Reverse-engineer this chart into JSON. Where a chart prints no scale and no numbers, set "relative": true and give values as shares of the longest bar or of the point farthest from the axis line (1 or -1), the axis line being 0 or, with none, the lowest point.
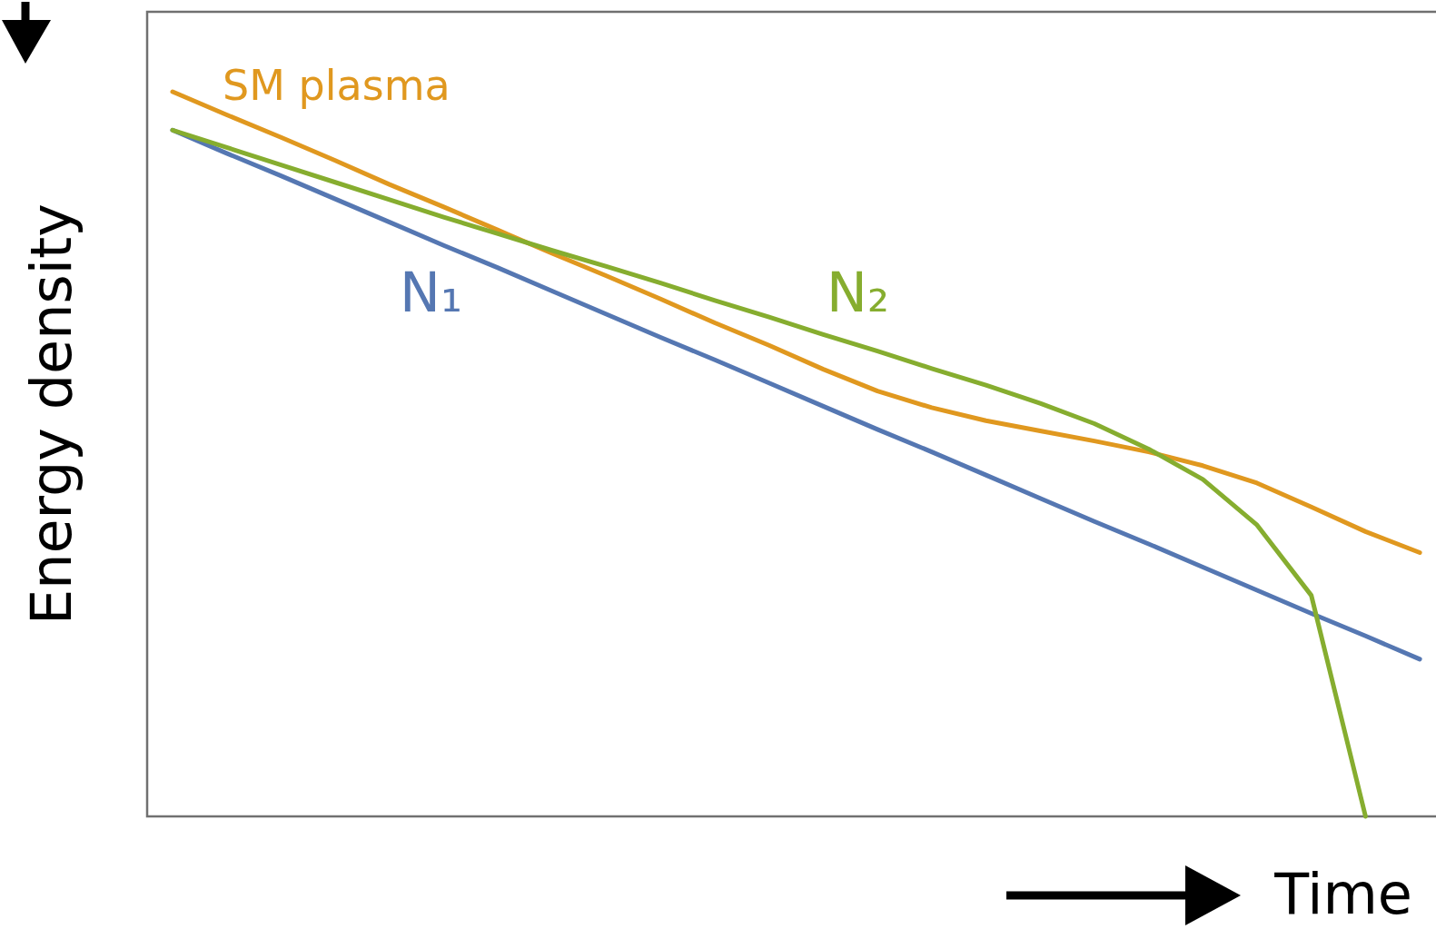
{
  "chart_data": {
    "type": "line",
    "relative": true,
    "xlabel": "Time",
    "ylabel": "Energy density",
    "categories": [
      null,
      null,
      null,
      null,
      null,
      null,
      null,
      null,
      null,
      null,
      null,
      null,
      null,
      null,
      null,
      null,
      null,
      null,
      null,
      null,
      null,
      null,
      null,
      null
    ],
    "series": [
      {
        "name": "SM plasma",
        "color": "#e0981f",
        "values": [
          1,
          0.968,
          0.937,
          0.905,
          0.872,
          0.841,
          0.809,
          0.777,
          0.746,
          0.714,
          0.681,
          0.65,
          0.617,
          0.587,
          0.564,
          0.546,
          0.532,
          0.518,
          0.503,
          0.484,
          0.46,
          0.427,
          0.393,
          0.364
        ]
      },
      {
        "name": "N₁",
        "color": "#5577b2",
        "values": [
          0.947,
          0.915,
          0.884,
          0.852,
          0.82,
          0.788,
          0.757,
          0.725,
          0.693,
          0.661,
          0.63,
          0.598,
          0.566,
          0.534,
          0.503,
          0.471,
          0.439,
          0.407,
          0.376,
          0.344,
          0.312,
          0.28,
          0.249,
          0.217
        ]
      },
      {
        "name": "N₂",
        "color": "#86ad2f",
        "values": [
          0.947,
          0.923,
          0.899,
          0.875,
          0.851,
          0.827,
          0.804,
          0.781,
          0.759,
          0.736,
          0.712,
          0.689,
          0.665,
          0.642,
          0.618,
          0.595,
          0.57,
          0.542,
          0.507,
          0.465,
          0.402,
          0.305,
          0,
          null
        ]
      }
    ]
  }
}
